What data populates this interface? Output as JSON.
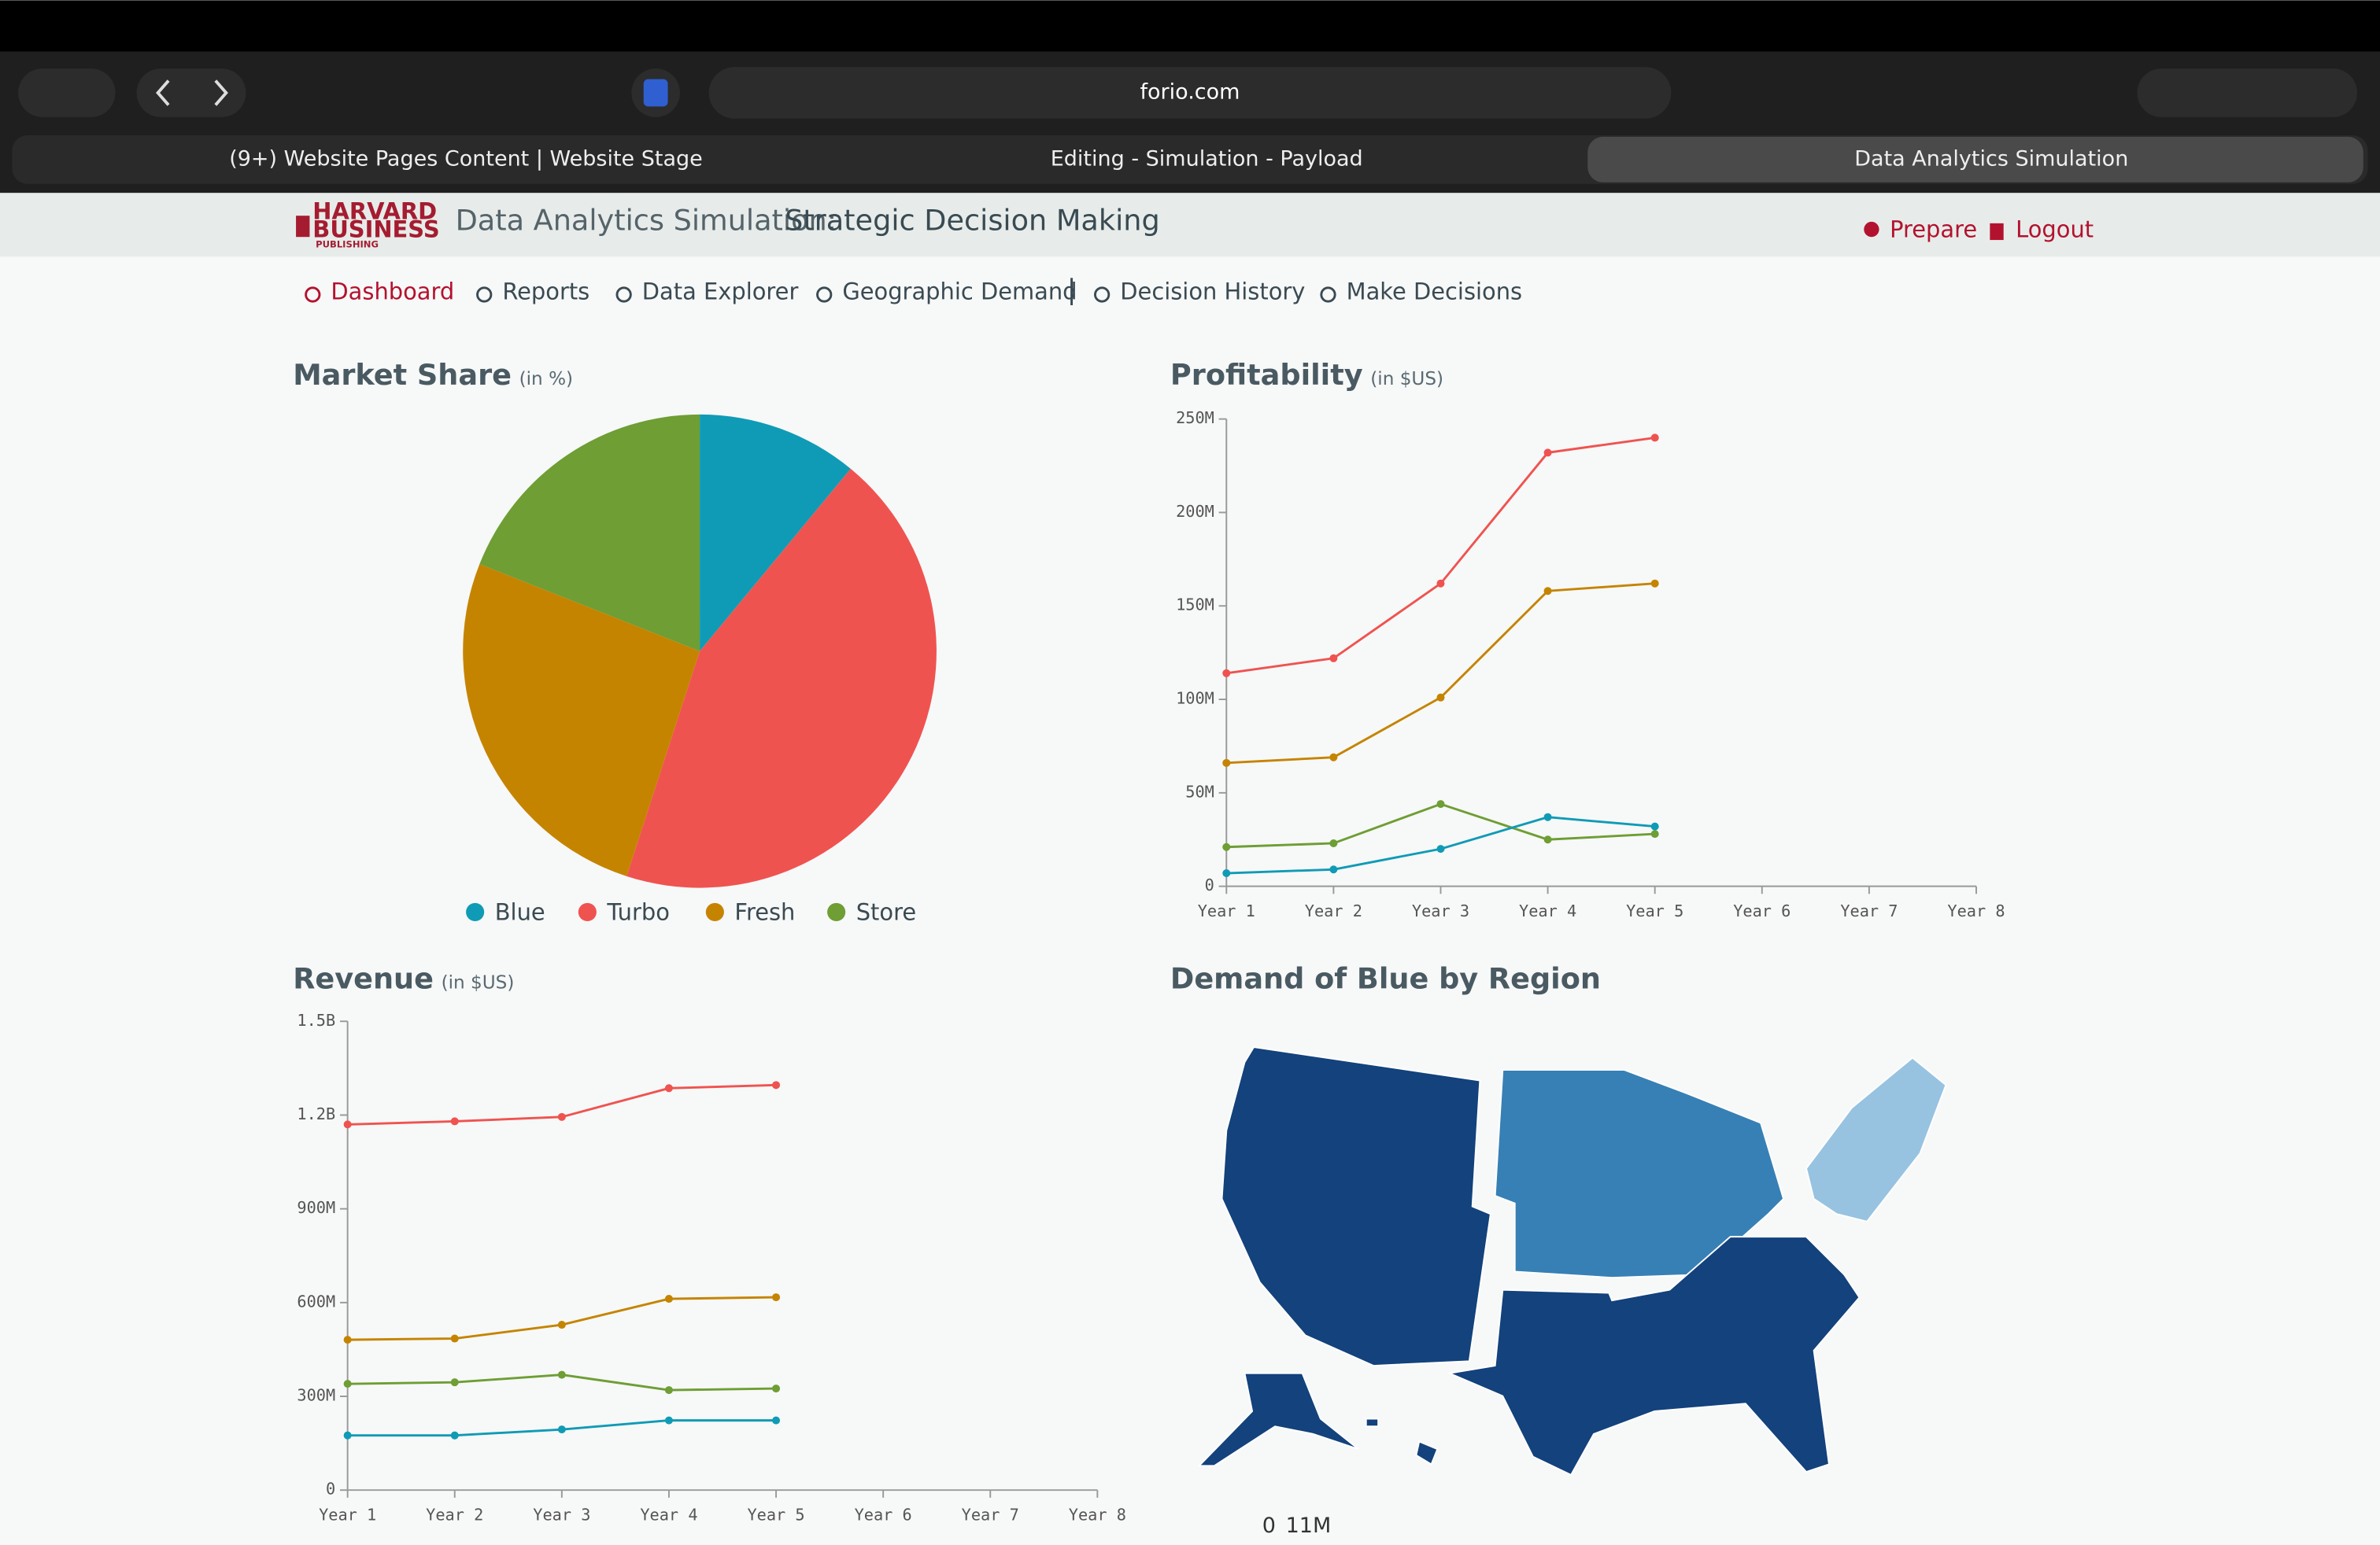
{
  "browser": {
    "url": "forio.com",
    "tabs": [
      "(9+) Website Pages Content | Website Stage",
      "Editing - Simulation - Payload",
      "Data Analytics Simulation"
    ]
  },
  "header": {
    "logo": [
      "HARVARD",
      "BUSINESS",
      "PUBLISHING"
    ],
    "title": "Data Analytics Simulation:",
    "subtitle": "Strategic Decision Making",
    "actions": [
      "Prepare",
      "Logout"
    ]
  },
  "nav": [
    "Dashboard",
    "Reports",
    "Data Explorer",
    "Geographic Demand",
    "Decision History",
    "Make Decisions"
  ],
  "chart_data": [
    {
      "type": "pie",
      "title": "Market Share",
      "subtitle": "(in %)",
      "categories": [
        "Blue",
        "Turbo",
        "Fresh",
        "Store"
      ],
      "values": [
        11,
        44,
        26,
        19
      ],
      "colors": [
        "#0f9bb5",
        "#ef5350",
        "#c58400",
        "#6e9e34"
      ],
      "legend": "bottom"
    },
    {
      "type": "line",
      "title": "Profitability",
      "subtitle": "(in $US)",
      "categories": [
        "Year 1",
        "Year 2",
        "Year 3",
        "Year 4",
        "Year 5",
        "Year 6",
        "Year 7",
        "Year 8"
      ],
      "series": [
        {
          "color": "#ef5350",
          "values": [
            114000000,
            122000000,
            162000000,
            232000000,
            240000000,
            null,
            null,
            null
          ]
        },
        {
          "color": "#c58400",
          "values": [
            66000000,
            69000000,
            101000000,
            158000000,
            162000000,
            null,
            null,
            null
          ]
        },
        {
          "color": "#6e9e34",
          "values": [
            21000000,
            23000000,
            44000000,
            25000000,
            28000000,
            null,
            null,
            null
          ]
        },
        {
          "color": "#0f9bb5",
          "values": [
            7000000,
            9000000,
            20000000,
            37000000,
            32000000,
            null,
            null,
            null
          ]
        }
      ],
      "ylim": [
        0,
        250000000
      ],
      "yticks": [
        0,
        {
          "value": 50000000,
          "label": "50M"
        },
        {
          "value": 100000000,
          "label": "100M"
        },
        {
          "value": 150000000,
          "label": "150M"
        },
        {
          "value": 200000000,
          "label": "200M"
        },
        {
          "value": 250000000,
          "label": "250M"
        }
      ],
      "grid": false
    },
    {
      "type": "line",
      "title": "Revenue",
      "subtitle": "(in $US)",
      "categories": [
        "Year 1",
        "Year 2",
        "Year 3",
        "Year 4",
        "Year 5",
        "Year 6",
        "Year 7",
        "Year 8"
      ],
      "series": [
        {
          "color": "#ef5350",
          "values": [
            1170000000,
            1180000000,
            1194000000,
            1286000000,
            1296000000,
            null,
            null,
            null
          ]
        },
        {
          "color": "#c58400",
          "values": [
            481000000,
            485000000,
            529000000,
            612000000,
            617000000,
            null,
            null,
            null
          ]
        },
        {
          "color": "#6e9e34",
          "values": [
            340000000,
            345000000,
            369000000,
            320000000,
            325000000,
            null,
            null,
            null
          ]
        },
        {
          "color": "#0f9bb5",
          "values": [
            175000000,
            175000000,
            194000000,
            223000000,
            223000000,
            null,
            null,
            null
          ]
        }
      ],
      "ylim": [
        0,
        1500000000
      ],
      "yticks": [
        0,
        {
          "value": 300000000,
          "label": "300M"
        },
        {
          "value": 600000000,
          "label": "600M"
        },
        {
          "value": 900000000,
          "label": "900M"
        },
        {
          "value": 1200000000,
          "label": "1.2B"
        },
        {
          "value": 1500000000,
          "label": "1.5B"
        }
      ],
      "grid": false
    },
    {
      "type": "choropleth",
      "title": "Demand of Blue by Region",
      "values": [
        10000000,
        6500000,
        2500000,
        10000000
      ],
      "scale_colors": [
        "#deebf7",
        "#4292c6",
        "#08306b"
      ],
      "scale_ticks": [
        0,
        {
          "value": 11000000,
          "label": "11M"
        }
      ]
    }
  ]
}
